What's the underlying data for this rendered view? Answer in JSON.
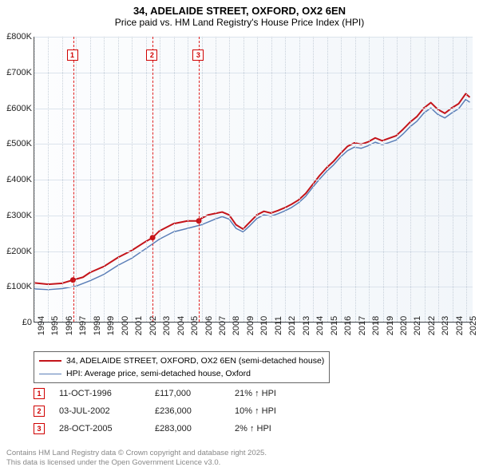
{
  "title_line1": "34, ADELAIDE STREET, OXFORD, OX2 6EN",
  "title_line2": "Price paid vs. HM Land Registry's House Price Index (HPI)",
  "chart": {
    "type": "line",
    "background_gradient": [
      "#fcfdfe",
      "#f2f6fa"
    ],
    "grid_color": "#dbe3ec",
    "axis_color": "#555555",
    "x_years": [
      1994,
      1995,
      1996,
      1997,
      1998,
      1999,
      2000,
      2001,
      2002,
      2003,
      2004,
      2005,
      2006,
      2007,
      2008,
      2009,
      2010,
      2011,
      2012,
      2013,
      2014,
      2015,
      2016,
      2017,
      2018,
      2019,
      2020,
      2021,
      2022,
      2023,
      2024,
      2025
    ],
    "xlim": [
      1994,
      2025.5
    ],
    "ylim": [
      0,
      800000
    ],
    "ytick_step": 100000,
    "ytick_labels": [
      "£0",
      "£100K",
      "£200K",
      "£300K",
      "£400K",
      "£500K",
      "£600K",
      "£700K",
      "£800K"
    ],
    "label_fontsize": 11,
    "series": [
      {
        "name": "34, ADELAIDE STREET, OXFORD, OX2 6EN (semi-detached house)",
        "color": "#c4141a",
        "line_width": 2,
        "points": [
          [
            1994.0,
            109000
          ],
          [
            1995.0,
            105000
          ],
          [
            1996.0,
            108000
          ],
          [
            1996.78,
            117000
          ],
          [
            1997.5,
            125000
          ],
          [
            1998.0,
            138000
          ],
          [
            1999.0,
            155000
          ],
          [
            2000.0,
            180000
          ],
          [
            2001.0,
            200000
          ],
          [
            2002.0,
            225000
          ],
          [
            2002.5,
            236000
          ],
          [
            2003.0,
            255000
          ],
          [
            2004.0,
            275000
          ],
          [
            2005.0,
            283000
          ],
          [
            2005.82,
            283000
          ],
          [
            2006.0,
            290000
          ],
          [
            2006.5,
            300000
          ],
          [
            2007.0,
            304000
          ],
          [
            2007.5,
            308000
          ],
          [
            2008.0,
            300000
          ],
          [
            2008.5,
            272000
          ],
          [
            2009.0,
            260000
          ],
          [
            2009.5,
            280000
          ],
          [
            2010.0,
            300000
          ],
          [
            2010.5,
            310000
          ],
          [
            2011.0,
            305000
          ],
          [
            2011.5,
            312000
          ],
          [
            2012.0,
            320000
          ],
          [
            2012.5,
            330000
          ],
          [
            2013.0,
            342000
          ],
          [
            2013.5,
            360000
          ],
          [
            2014.0,
            385000
          ],
          [
            2014.5,
            410000
          ],
          [
            2015.0,
            432000
          ],
          [
            2015.5,
            450000
          ],
          [
            2016.0,
            472000
          ],
          [
            2016.5,
            492000
          ],
          [
            2017.0,
            502000
          ],
          [
            2017.5,
            498000
          ],
          [
            2018.0,
            505000
          ],
          [
            2018.5,
            516000
          ],
          [
            2019.0,
            508000
          ],
          [
            2019.5,
            515000
          ],
          [
            2020.0,
            522000
          ],
          [
            2020.5,
            540000
          ],
          [
            2021.0,
            560000
          ],
          [
            2021.5,
            576000
          ],
          [
            2022.0,
            600000
          ],
          [
            2022.5,
            615000
          ],
          [
            2023.0,
            596000
          ],
          [
            2023.5,
            585000
          ],
          [
            2024.0,
            600000
          ],
          [
            2024.5,
            612000
          ],
          [
            2025.0,
            640000
          ],
          [
            2025.3,
            630000
          ]
        ]
      },
      {
        "name": "HPI: Average price, semi-detached house, Oxford",
        "color": "#5b7fb8",
        "line_width": 1.5,
        "points": [
          [
            1994.0,
            92000
          ],
          [
            1995.0,
            90000
          ],
          [
            1996.0,
            93000
          ],
          [
            1997.0,
            100000
          ],
          [
            1998.0,
            115000
          ],
          [
            1999.0,
            133000
          ],
          [
            2000.0,
            158000
          ],
          [
            2001.0,
            178000
          ],
          [
            2002.0,
            205000
          ],
          [
            2003.0,
            232000
          ],
          [
            2004.0,
            252000
          ],
          [
            2005.0,
            262000
          ],
          [
            2006.0,
            272000
          ],
          [
            2006.5,
            280000
          ],
          [
            2007.0,
            288000
          ],
          [
            2007.5,
            295000
          ],
          [
            2008.0,
            288000
          ],
          [
            2008.5,
            262000
          ],
          [
            2009.0,
            252000
          ],
          [
            2009.5,
            270000
          ],
          [
            2010.0,
            290000
          ],
          [
            2010.5,
            300000
          ],
          [
            2011.0,
            296000
          ],
          [
            2011.5,
            303000
          ],
          [
            2012.0,
            311000
          ],
          [
            2012.5,
            321000
          ],
          [
            2013.0,
            334000
          ],
          [
            2013.5,
            352000
          ],
          [
            2014.0,
            377000
          ],
          [
            2014.5,
            400000
          ],
          [
            2015.0,
            422000
          ],
          [
            2015.5,
            440000
          ],
          [
            2016.0,
            462000
          ],
          [
            2016.5,
            480000
          ],
          [
            2017.0,
            490000
          ],
          [
            2017.5,
            487000
          ],
          [
            2018.0,
            494000
          ],
          [
            2018.5,
            504000
          ],
          [
            2019.0,
            497000
          ],
          [
            2019.5,
            503000
          ],
          [
            2020.0,
            510000
          ],
          [
            2020.5,
            527000
          ],
          [
            2021.0,
            547000
          ],
          [
            2021.5,
            563000
          ],
          [
            2022.0,
            586000
          ],
          [
            2022.5,
            600000
          ],
          [
            2023.0,
            582000
          ],
          [
            2023.5,
            572000
          ],
          [
            2024.0,
            586000
          ],
          [
            2024.5,
            598000
          ],
          [
            2025.0,
            624000
          ],
          [
            2025.3,
            616000
          ]
        ]
      }
    ],
    "sale_markers": [
      {
        "n": "1",
        "year": 1996.78,
        "price": 117000
      },
      {
        "n": "2",
        "year": 2002.5,
        "price": 236000
      },
      {
        "n": "3",
        "year": 2005.82,
        "price": 283000
      }
    ],
    "sale_dot_color": "#c4141a",
    "marker_line_color": "#e02020",
    "marker_box_border": "#d00000"
  },
  "legend": {
    "items": [
      {
        "label": "34, ADELAIDE STREET, OXFORD, OX2 6EN (semi-detached house)",
        "color": "#c4141a",
        "width": 2
      },
      {
        "label": "HPI: Average price, semi-detached house, Oxford",
        "color": "#5b7fb8",
        "width": 1.5
      }
    ]
  },
  "transactions": [
    {
      "n": "1",
      "date": "11-OCT-1996",
      "price": "£117,000",
      "delta": "21% ↑ HPI"
    },
    {
      "n": "2",
      "date": "03-JUL-2002",
      "price": "£236,000",
      "delta": "10% ↑ HPI"
    },
    {
      "n": "3",
      "date": "28-OCT-2005",
      "price": "£283,000",
      "delta": "2% ↑ HPI"
    }
  ],
  "footer_line1": "Contains HM Land Registry data © Crown copyright and database right 2025.",
  "footer_line2": "This data is licensed under the Open Government Licence v3.0."
}
